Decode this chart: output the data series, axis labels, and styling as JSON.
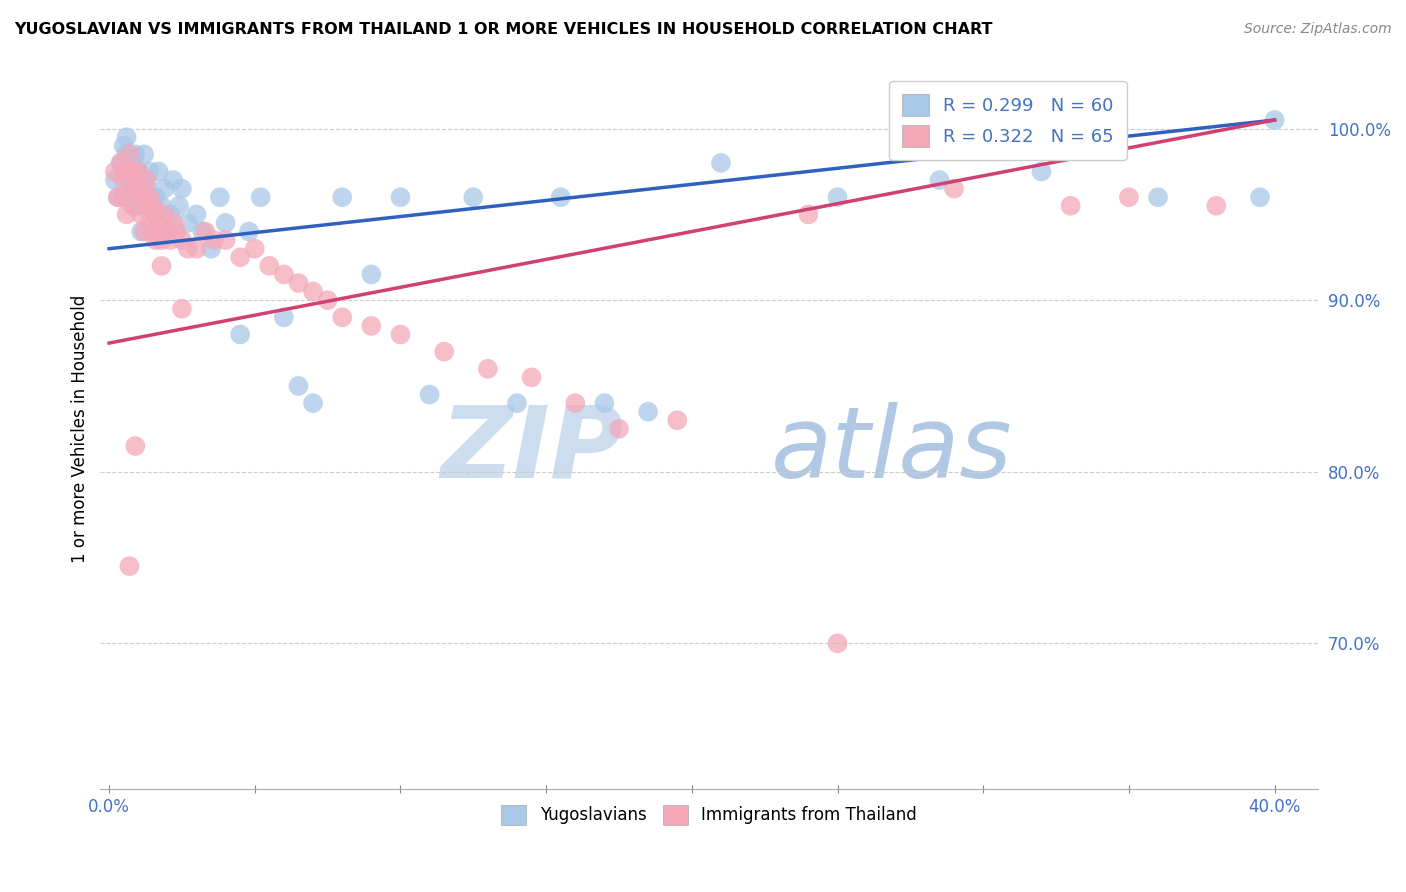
{
  "title": "YUGOSLAVIAN VS IMMIGRANTS FROM THAILAND 1 OR MORE VEHICLES IN HOUSEHOLD CORRELATION CHART",
  "source": "Source: ZipAtlas.com",
  "ylabel": "1 or more Vehicles in Household",
  "color_blue": "#a8c8e8",
  "color_pink": "#f4a8b8",
  "line_color_blue": "#3060c0",
  "line_color_pink": "#d04070",
  "blue_line_x0": 0.0,
  "blue_line_y0": 0.93,
  "blue_line_x1": 0.4,
  "blue_line_y1": 1.005,
  "pink_line_x0": 0.0,
  "pink_line_y0": 0.875,
  "pink_line_x1": 0.4,
  "pink_line_y1": 1.005,
  "xlim_min": -0.003,
  "xlim_max": 0.415,
  "ylim_min": 0.615,
  "ylim_max": 1.035,
  "ytick_vals": [
    0.7,
    0.8,
    0.9,
    1.0
  ],
  "ytick_labels": [
    "70.0%",
    "80.0%",
    "90.0%",
    "100.0%"
  ],
  "xtick_vals": [
    0.0,
    0.05,
    0.1,
    0.15,
    0.2,
    0.25,
    0.3,
    0.35,
    0.4
  ],
  "xtick_labels": [
    "0.0%",
    "",
    "",
    "",
    "",
    "",
    "",
    "",
    "40.0%"
  ],
  "blue_scatter_x": [
    0.002,
    0.003,
    0.004,
    0.005,
    0.005,
    0.006,
    0.006,
    0.007,
    0.007,
    0.008,
    0.008,
    0.009,
    0.009,
    0.01,
    0.01,
    0.011,
    0.011,
    0.012,
    0.012,
    0.013,
    0.014,
    0.015,
    0.015,
    0.016,
    0.017,
    0.018,
    0.019,
    0.02,
    0.021,
    0.022,
    0.024,
    0.025,
    0.027,
    0.03,
    0.032,
    0.035,
    0.038,
    0.04,
    0.045,
    0.048,
    0.052,
    0.06,
    0.065,
    0.07,
    0.08,
    0.09,
    0.1,
    0.11,
    0.125,
    0.14,
    0.155,
    0.17,
    0.185,
    0.21,
    0.25,
    0.285,
    0.32,
    0.36,
    0.395,
    0.4
  ],
  "blue_scatter_y": [
    0.97,
    0.96,
    0.98,
    0.99,
    0.975,
    0.985,
    0.995,
    0.96,
    0.97,
    0.98,
    0.955,
    0.965,
    0.985,
    0.96,
    0.975,
    0.94,
    0.955,
    0.97,
    0.985,
    0.965,
    0.975,
    0.96,
    0.94,
    0.96,
    0.975,
    0.955,
    0.965,
    0.94,
    0.95,
    0.97,
    0.955,
    0.965,
    0.945,
    0.95,
    0.94,
    0.93,
    0.96,
    0.945,
    0.88,
    0.94,
    0.96,
    0.89,
    0.85,
    0.84,
    0.96,
    0.915,
    0.96,
    0.845,
    0.96,
    0.84,
    0.96,
    0.84,
    0.835,
    0.98,
    0.96,
    0.97,
    0.975,
    0.96,
    0.96,
    1.005
  ],
  "pink_scatter_x": [
    0.002,
    0.003,
    0.004,
    0.005,
    0.005,
    0.006,
    0.006,
    0.007,
    0.008,
    0.008,
    0.009,
    0.009,
    0.01,
    0.01,
    0.011,
    0.011,
    0.012,
    0.012,
    0.013,
    0.013,
    0.014,
    0.014,
    0.015,
    0.015,
    0.016,
    0.016,
    0.017,
    0.018,
    0.019,
    0.02,
    0.021,
    0.022,
    0.023,
    0.025,
    0.027,
    0.03,
    0.033,
    0.036,
    0.04,
    0.045,
    0.05,
    0.055,
    0.06,
    0.065,
    0.07,
    0.075,
    0.08,
    0.09,
    0.1,
    0.115,
    0.13,
    0.145,
    0.16,
    0.175,
    0.195,
    0.24,
    0.29,
    0.33,
    0.35,
    0.38,
    0.007,
    0.009,
    0.018,
    0.025,
    0.25
  ],
  "pink_scatter_y": [
    0.975,
    0.96,
    0.98,
    0.97,
    0.96,
    0.95,
    0.975,
    0.985,
    0.975,
    0.965,
    0.955,
    0.97,
    0.96,
    0.975,
    0.965,
    0.95,
    0.96,
    0.94,
    0.955,
    0.97,
    0.945,
    0.96,
    0.94,
    0.955,
    0.95,
    0.935,
    0.945,
    0.935,
    0.95,
    0.94,
    0.935,
    0.945,
    0.94,
    0.935,
    0.93,
    0.93,
    0.94,
    0.935,
    0.935,
    0.925,
    0.93,
    0.92,
    0.915,
    0.91,
    0.905,
    0.9,
    0.89,
    0.885,
    0.88,
    0.87,
    0.86,
    0.855,
    0.84,
    0.825,
    0.83,
    0.95,
    0.965,
    0.955,
    0.96,
    0.955,
    0.745,
    0.815,
    0.92,
    0.895,
    0.7
  ]
}
